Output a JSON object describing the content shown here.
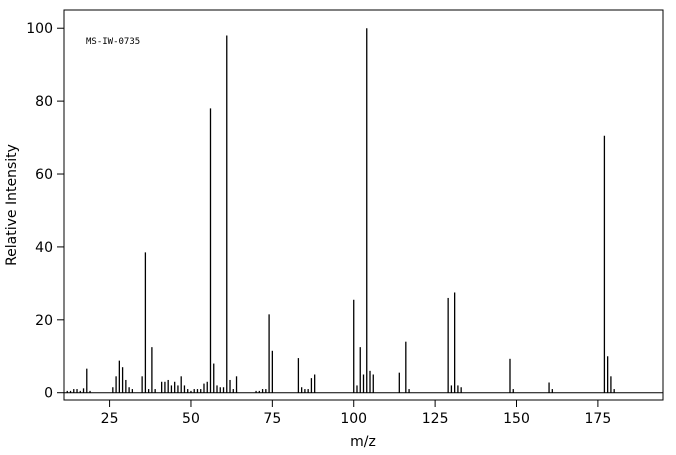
{
  "chart_data": {
    "type": "bar",
    "annotation": "MS-IW-0735",
    "x_label": "m/z",
    "y_label": "Relative Intensity",
    "x": [
      12,
      13,
      14,
      15,
      16,
      17,
      18,
      19,
      26,
      27,
      28,
      29,
      30,
      31,
      32,
      35,
      36,
      37,
      38,
      39,
      41,
      42,
      43,
      44,
      45,
      46,
      47,
      48,
      49,
      50,
      51,
      52,
      53,
      54,
      55,
      56,
      57,
      58,
      59,
      60,
      61,
      62,
      63,
      64,
      70,
      71,
      72,
      73,
      74,
      75,
      83,
      84,
      85,
      86,
      87,
      88,
      100,
      101,
      102,
      103,
      104,
      105,
      106,
      114,
      116,
      117,
      129,
      130,
      131,
      132,
      133,
      148,
      149,
      160,
      161,
      177,
      178,
      179,
      180
    ],
    "values": [
      0.5,
      0.5,
      1,
      1,
      0.5,
      1.2,
      6.6,
      0.5,
      1.5,
      4.5,
      8.8,
      7,
      3.5,
      1.5,
      1,
      4.5,
      38.5,
      1,
      12.5,
      1,
      3,
      3,
      3.5,
      2,
      3,
      2,
      4.5,
      2,
      1,
      0.5,
      1,
      1,
      1,
      2.5,
      3,
      78,
      8,
      2,
      1.5,
      1.5,
      98,
      3.5,
      1,
      4.5,
      0.5,
      0.5,
      1,
      1,
      21.5,
      11.5,
      9.5,
      1.5,
      1,
      1,
      4,
      5,
      25.5,
      2,
      12.5,
      5,
      100,
      6,
      5,
      5.5,
      14,
      1,
      26,
      2,
      27.5,
      2,
      1.5,
      9.3,
      1,
      2.8,
      1,
      70.5,
      10,
      4.5,
      1
    ],
    "color": "#000000",
    "xlim": [
      11,
      195
    ],
    "ylim": [
      -2,
      105
    ],
    "xticks": [
      25,
      50,
      75,
      100,
      125,
      150,
      175
    ],
    "yticks": [
      0,
      20,
      40,
      60,
      80,
      100
    ]
  }
}
